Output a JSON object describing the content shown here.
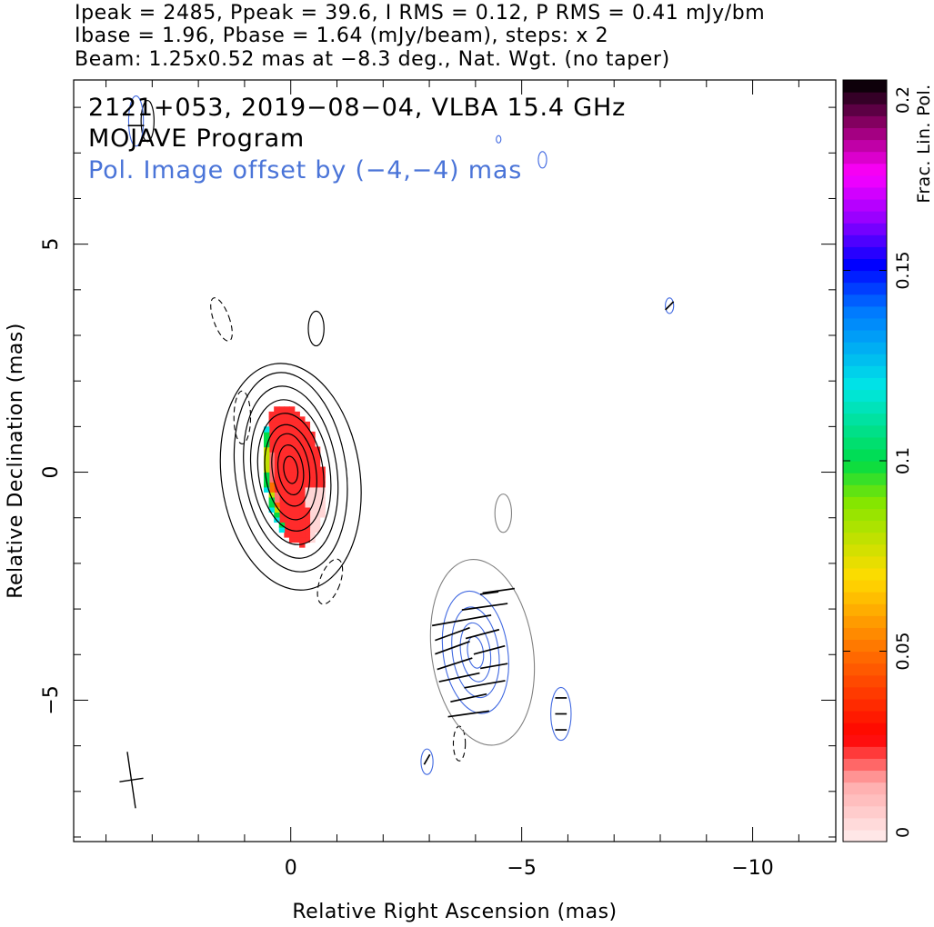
{
  "header": {
    "line1": "Ipeak = 2485, Ppeak = 39.6, I RMS = 0.12, P RMS = 0.41 mJy/bm",
    "line2": "Ibase = 1.96, Pbase = 1.64 (mJy/beam), steps: x 2",
    "line3": "Beam: 1.25x0.52 mas at −8.3 deg., Nat. Wgt. (no taper)"
  },
  "annotations": {
    "source": "2121+053, 2019−08−04, VLBA 15.4 GHz",
    "program": "MOJAVE Program",
    "pol_offset": "Pol. Image offset by (−4,−4) mas"
  },
  "colors": {
    "stokes_i_contour": "#000000",
    "pol_contour": "#4169e1",
    "pol_offset_text": "#4a74d8",
    "offset_i_contour": "#808080",
    "evpa_ticks": "#000000"
  },
  "chart_data": {
    "type": "heatmap",
    "title": "2121+053, 2019-08-04, VLBA 15.4 GHz",
    "xlabel": "Relative Right Ascension (mas)",
    "ylabel": "Relative Declination (mas)",
    "xlim": [
      4.7,
      -11.8
    ],
    "ylim": [
      -8.1,
      8.6
    ],
    "x_ticks": [
      0,
      -5,
      -10
    ],
    "x_tick_labels": [
      "0",
      "−5",
      "−10"
    ],
    "y_ticks": [
      5,
      0,
      -5
    ],
    "y_tick_labels": [
      "5",
      "0",
      "−5"
    ],
    "colorbar": {
      "label": "Frac. Lin. Pol.",
      "range": [
        0,
        0.2
      ],
      "ticks": [
        0,
        0.05,
        0.1,
        0.15,
        0.2
      ],
      "tick_labels": [
        "0",
        "0.05",
        "0.1",
        "0.15",
        "0.2"
      ]
    },
    "stokes_i_contours": [
      {
        "cx": 0.0,
        "cy": -0.1,
        "rx": 1.5,
        "ry": 2.5,
        "tilt": -8
      },
      {
        "cx": 0.0,
        "cy": 0.0,
        "rx": 1.2,
        "ry": 2.2,
        "tilt": -8
      },
      {
        "cx": 0.0,
        "cy": 0.0,
        "rx": 1.0,
        "ry": 1.9,
        "tilt": -8
      },
      {
        "cx": 0.0,
        "cy": 0.0,
        "rx": 0.85,
        "ry": 1.6,
        "tilt": -8
      },
      {
        "cx": 0.0,
        "cy": 0.0,
        "rx": 0.7,
        "ry": 1.3,
        "tilt": -8
      },
      {
        "cx": 0.0,
        "cy": 0.0,
        "rx": 0.55,
        "ry": 1.05,
        "tilt": -8
      },
      {
        "cx": 0.0,
        "cy": 0.05,
        "rx": 0.4,
        "ry": 0.8,
        "tilt": -8
      },
      {
        "cx": 0.0,
        "cy": 0.05,
        "rx": 0.27,
        "ry": 0.55,
        "tilt": -8
      },
      {
        "cx": 0.0,
        "cy": 0.05,
        "rx": 0.15,
        "ry": 0.3,
        "tilt": -8
      },
      {
        "cx": -0.55,
        "cy": 3.15,
        "rx": 0.17,
        "ry": 0.38,
        "tilt": 0
      },
      {
        "cx": 3.1,
        "cy": 7.7,
        "rx": 0.14,
        "ry": 0.45,
        "tilt": 0
      }
    ],
    "negative_contours": [
      {
        "cx": 1.5,
        "cy": 3.35,
        "rx": 0.17,
        "ry": 0.5,
        "tilt": -20
      },
      {
        "cx": 1.05,
        "cy": 1.2,
        "rx": 0.18,
        "ry": 0.58,
        "tilt": 0
      },
      {
        "cx": -0.85,
        "cy": -2.4,
        "rx": 0.22,
        "ry": 0.52,
        "tilt": 20
      },
      {
        "cx": -3.65,
        "cy": -5.95,
        "rx": 0.13,
        "ry": 0.38,
        "tilt": 0
      }
    ],
    "offset_i_contours": [
      {
        "cx": -4.15,
        "cy": -3.95,
        "rx": 1.1,
        "ry": 2.05,
        "tilt": -8
      },
      {
        "cx": -4.6,
        "cy": -0.9,
        "rx": 0.18,
        "ry": 0.42,
        "tilt": 0
      }
    ],
    "pol_contours": [
      {
        "cx": -4.0,
        "cy": -3.95,
        "rx": 0.7,
        "ry": 1.35,
        "tilt": -8
      },
      {
        "cx": -4.0,
        "cy": -3.95,
        "rx": 0.5,
        "ry": 1.0,
        "tilt": -8
      },
      {
        "cx": -4.0,
        "cy": -3.95,
        "rx": 0.32,
        "ry": 0.65,
        "tilt": -8
      },
      {
        "cx": -4.0,
        "cy": -3.95,
        "rx": 0.17,
        "ry": 0.35,
        "tilt": -8
      },
      {
        "cx": -5.85,
        "cy": -5.3,
        "rx": 0.22,
        "ry": 0.58,
        "tilt": 0
      },
      {
        "cx": -2.95,
        "cy": -6.35,
        "rx": 0.13,
        "ry": 0.28,
        "tilt": 0
      },
      {
        "cx": 3.35,
        "cy": 7.7,
        "rx": 0.16,
        "ry": 0.55,
        "tilt": 0
      },
      {
        "cx": -4.5,
        "cy": 7.3,
        "rx": 0.05,
        "ry": 0.08,
        "tilt": 0
      },
      {
        "cx": -5.45,
        "cy": 6.85,
        "rx": 0.09,
        "ry": 0.18,
        "tilt": 0
      },
      {
        "cx": -8.2,
        "cy": 3.65,
        "rx": 0.09,
        "ry": 0.17,
        "tilt": 0
      }
    ],
    "evpa_vectors": [
      {
        "x": -4.5,
        "y": -2.6,
        "len": 0.7,
        "angle": 8
      },
      {
        "x": -4.2,
        "y": -2.95,
        "len": 1.0,
        "angle": 8
      },
      {
        "x": -3.7,
        "y": -3.25,
        "len": 1.3,
        "angle": 10
      },
      {
        "x": -3.5,
        "y": -3.55,
        "len": 0.8,
        "angle": 20
      },
      {
        "x": -4.15,
        "y": -3.55,
        "len": 0.75,
        "angle": 15
      },
      {
        "x": -3.5,
        "y": -3.85,
        "len": 0.8,
        "angle": 20
      },
      {
        "x": -4.3,
        "y": -3.9,
        "len": 0.7,
        "angle": 15
      },
      {
        "x": -3.55,
        "y": -4.2,
        "len": 0.8,
        "angle": 18
      },
      {
        "x": -4.4,
        "y": -4.25,
        "len": 0.6,
        "angle": 10
      },
      {
        "x": -3.65,
        "y": -4.5,
        "len": 0.9,
        "angle": 12
      },
      {
        "x": -4.2,
        "y": -4.65,
        "len": 0.9,
        "angle": 10
      },
      {
        "x": -3.85,
        "y": -4.95,
        "len": 0.8,
        "angle": 12
      },
      {
        "x": -3.85,
        "y": -5.3,
        "len": 0.9,
        "angle": 8
      },
      {
        "x": -4.3,
        "y": -2.65,
        "len": 0.4,
        "angle": 8
      },
      {
        "x": -5.85,
        "y": -4.95,
        "len": 0.25,
        "angle": 0
      },
      {
        "x": -5.85,
        "y": -5.3,
        "len": 0.25,
        "angle": 0
      },
      {
        "x": -5.85,
        "y": -5.65,
        "len": 0.25,
        "angle": 0
      },
      {
        "x": -2.95,
        "y": -6.3,
        "len": 0.25,
        "angle": 60
      },
      {
        "x": 3.35,
        "y": 7.6,
        "len": 0.35,
        "angle": 0
      },
      {
        "x": -8.2,
        "y": 3.65,
        "len": 0.25,
        "angle": 45
      }
    ],
    "frac_pol_image": {
      "center": [
        0.0,
        0.0
      ],
      "rx": 0.65,
      "ry": 1.55,
      "tilt": -8,
      "typical_value": 0.025,
      "edge_values": [
        0.02,
        0.05,
        0.08,
        0.1,
        0.12
      ]
    },
    "beam": {
      "major_mas": 1.25,
      "minor_mas": 0.52,
      "pa_deg": -8.3,
      "x": 3.45,
      "y": -6.75
    }
  }
}
